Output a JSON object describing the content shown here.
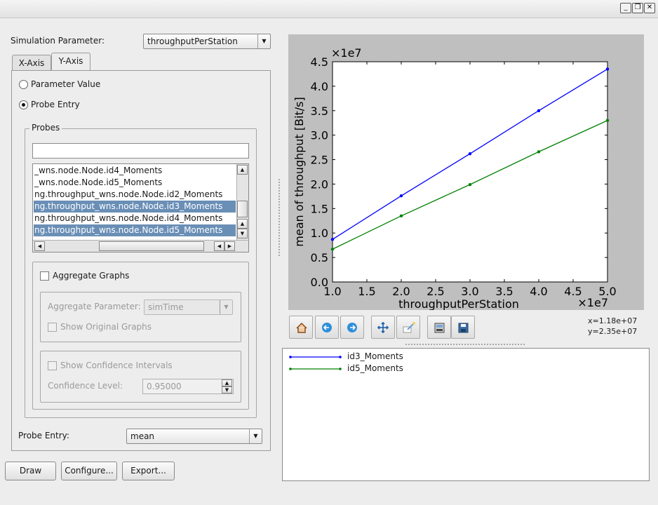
{
  "window": {
    "minimize_icon": "minimize-icon",
    "restore_icon": "restore-icon",
    "close_icon": "close-icon"
  },
  "sim_param": {
    "label": "Simulation Parameter:",
    "value": "throughputPerStation"
  },
  "tabs": [
    {
      "label": "X-Axis"
    },
    {
      "label": "Y-Axis"
    }
  ],
  "yaxis": {
    "param_value_label": "Parameter Value",
    "probe_entry_label": "Probe Entry",
    "probes_title": "Probes",
    "filter_value": "",
    "probes": [
      {
        "label": "_wns.node.Node.id4_Moments",
        "selected": false
      },
      {
        "label": "_wns.node.Node.id5_Moments",
        "selected": false
      },
      {
        "label": "ng.throughput_wns.node.Node.id2_Moments",
        "selected": false
      },
      {
        "label": "ng.throughput_wns.node.Node.id3_Moments",
        "selected": true
      },
      {
        "label": "ng.throughput_wns.node.Node.id4_Moments",
        "selected": false
      },
      {
        "label": "ng.throughput_wns.node.Node.id5_Moments",
        "selected": true
      }
    ],
    "aggregate_label": "Aggregate Graphs",
    "aggregate_param_label": "Aggregate Parameter:",
    "aggregate_param_value": "simTime",
    "show_original_label": "Show Original Graphs",
    "show_confidence_label": "Show Confidence Intervals",
    "confidence_level_label": "Confidence Level:",
    "confidence_level_value": "0.95000",
    "probe_entry_field_label": "Probe Entry:",
    "probe_entry_value": "mean"
  },
  "buttons": {
    "draw": "Draw",
    "configure": "Configure...",
    "export": "Export..."
  },
  "toolbar": {
    "icons": [
      "home-icon",
      "back-icon",
      "forward-icon",
      "pan-icon",
      "zoom-icon",
      "subplots-icon",
      "save-icon"
    ],
    "coords_x": "x=1.18e+07",
    "coords_y": "y=2.35e+07"
  },
  "colors": {
    "series1": "#0000ff",
    "series2": "#008000",
    "selection": "#6a8fb6",
    "plot_bg": "#bfbfbf"
  },
  "chart_data": {
    "type": "line",
    "xlabel": "throughputPerStation",
    "ylabel": "mean of throughput [Bit/s]",
    "x_multiplier": "×1e7",
    "y_multiplier": "×1e7",
    "xlim": [
      1.0,
      5.0
    ],
    "ylim": [
      0.0,
      4.5
    ],
    "xticks": [
      "1.0",
      "1.5",
      "2.0",
      "2.5",
      "3.0",
      "3.5",
      "4.0",
      "4.5",
      "5.0"
    ],
    "yticks": [
      "0.0",
      "0.5",
      "1.0",
      "1.5",
      "2.0",
      "2.5",
      "3.0",
      "3.5",
      "4.0",
      "4.5"
    ],
    "grid": false,
    "legend_position": "below-plot",
    "series": [
      {
        "name": "id3_Moments",
        "color": "#0000ff",
        "x": [
          1.0,
          2.0,
          3.0,
          4.0,
          5.0
        ],
        "y": [
          0.87,
          1.76,
          2.62,
          3.5,
          4.35
        ]
      },
      {
        "name": "id5_Moments",
        "color": "#008000",
        "x": [
          1.0,
          2.0,
          3.0,
          4.0,
          5.0
        ],
        "y": [
          0.67,
          1.35,
          1.99,
          2.66,
          3.3
        ]
      }
    ]
  }
}
